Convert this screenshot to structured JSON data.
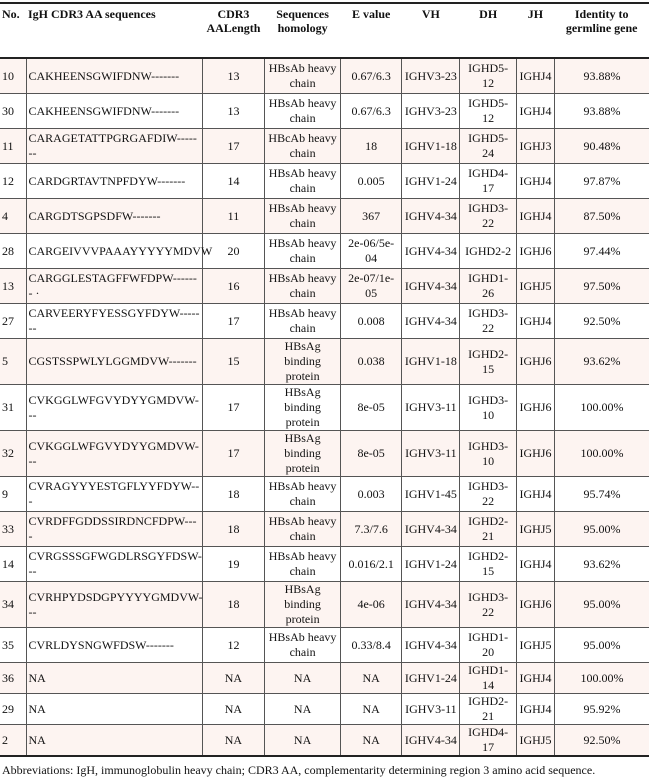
{
  "headers": [
    "No.",
    "IgH CDR3 AA sequences",
    "CDR3 AALength",
    "Sequences homology",
    "E value",
    "VH",
    "DH",
    "JH",
    "Identity to germline gene"
  ],
  "rows": [
    [
      "10",
      "CAKHEENSGWIFDNW-------",
      "13",
      "HBsAb heavy chain",
      "0.67/6.3",
      "IGHV3-23",
      "IGHD5-12",
      "IGHJ4",
      "93.88%"
    ],
    [
      "30",
      "CAKHEENSGWIFDNW-------",
      "13",
      "HBsAb heavy chain",
      "0.67/6.3",
      "IGHV3-23",
      "IGHD5-12",
      "IGHJ4",
      "93.88%"
    ],
    [
      "11",
      "CARAGETATTPGRGAFDIW-------",
      "17",
      "HBcAb heavy chain",
      "18",
      "IGHV1-18",
      "IGHD5-24",
      "IGHJ3",
      "90.48%"
    ],
    [
      "12",
      "CARDGRTAVTNPFDYW-------",
      "14",
      "HBsAb heavy chain",
      "0.005",
      "IGHV1-24",
      "IGHD4-17",
      "IGHJ4",
      "97.87%"
    ],
    [
      "4",
      "CARGDTSGPSDFW-------",
      "11",
      "HBsAb heavy chain",
      "367",
      "IGHV4-34",
      "IGHD3-22",
      "IGHJ4",
      "87.50%"
    ],
    [
      "28",
      "CARGEIVVVPAAAYYYYYMDVW",
      "20",
      "HBsAb heavy chain",
      "2e-06/5e-04",
      "IGHV4-34",
      "IGHD2-2",
      "IGHJ6",
      "97.44%"
    ],
    [
      "13",
      "CARGGLESTAGFFWFDPW------- ·",
      "16",
      "HBsAb heavy chain",
      "2e-07/1e-05",
      "IGHV4-34",
      "IGHD1-26",
      "IGHJ5",
      "97.50%"
    ],
    [
      "27",
      "CARVEERYFYESSGYFDYW-------",
      "17",
      "HBsAb heavy chain",
      "0.008",
      "IGHV4-34",
      "IGHD3-22",
      "IGHJ4",
      "92.50%"
    ],
    [
      "5",
      "CGSTSSPWLYLGGMDVW-------",
      "15",
      "HBsAg binding protein",
      "0.038",
      "IGHV1-18",
      "IGHD2-15",
      "IGHJ6",
      "93.62%"
    ],
    [
      "31",
      "CVKGGLWFGVYDYYGMDVW---",
      "17",
      "HBsAg binding protein",
      "8e-05",
      "IGHV3-11",
      "IGHD3-10",
      "IGHJ6",
      "100.00%"
    ],
    [
      "32",
      "CVKGGLWFGVYDYYGMDVW---",
      "17",
      "HBsAg binding protein",
      "8e-05",
      "IGHV3-11",
      "IGHD3-10",
      "IGHJ6",
      "100.00%"
    ],
    [
      "9",
      "CVRAGYYYESTGFLYYFDYW---",
      "18",
      "HBsAb heavy chain",
      "0.003",
      "IGHV1-45",
      "IGHD3-22",
      "IGHJ4",
      "95.74%"
    ],
    [
      "33",
      "CVRDFFGDDSSIRDNCFDPW----",
      "18",
      "HBsAb heavy chain",
      "7.3/7.6",
      "IGHV4-34",
      "IGHD2-21",
      "IGHJ5",
      "95.00%"
    ],
    [
      "14",
      "CVRGSSSGFWGDLRSGYFDSW---",
      "19",
      "HBsAb heavy chain",
      "0.016/2.1",
      "IGHV1-24",
      "IGHD2-15",
      "IGHJ4",
      "93.62%"
    ],
    [
      "34",
      "CVRHPYDSDGPYYYYGMDVW---",
      "18",
      "HBsAg binding protein",
      "4e-06",
      "IGHV4-34",
      "IGHD3-22",
      "IGHJ6",
      "95.00%"
    ],
    [
      "35",
      "CVRLDYSNGWFDSW-------",
      "12",
      "HBsAb heavy chain",
      "0.33/8.4",
      "IGHV4-34",
      "IGHD1-20",
      "IGHJ5",
      "95.00%"
    ],
    [
      "36",
      "NA",
      "NA",
      "NA",
      "NA",
      "IGHV1-24",
      "IGHD1-14",
      "IGHJ4",
      "100.00%"
    ],
    [
      "29",
      "NA",
      "NA",
      "NA",
      "NA",
      "IGHV3-11",
      "IGHD2-21",
      "IGHJ4",
      "95.92%"
    ],
    [
      "2",
      "NA",
      "NA",
      "NA",
      "NA",
      "IGHV4-34",
      "IGHD4-17",
      "IGHJ5",
      "92.50%"
    ]
  ],
  "footnote": "Abbreviations: IgH, immunoglobulin heavy chain; CDR3 AA, complementarity determining region 3 amino acid sequence.",
  "colors": {
    "row_alt": "#fdf4f1",
    "border": "#555555"
  }
}
